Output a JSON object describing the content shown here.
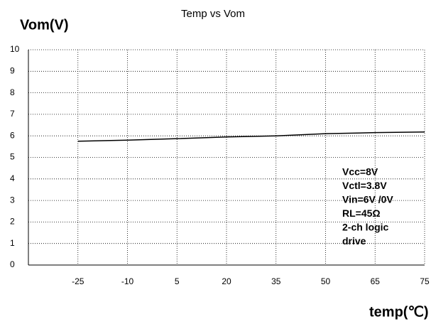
{
  "chart_data": {
    "type": "line",
    "title": "Temp vs Vom",
    "y_label": "Vom(V)",
    "x_label": "temp(℃)",
    "categories": [
      "-25",
      "-10",
      "5",
      "20",
      "35",
      "50",
      "65",
      "75"
    ],
    "series": [
      {
        "name": "Vom",
        "color": "#000000",
        "values": [
          5.75,
          5.8,
          5.87,
          5.95,
          6.0,
          6.1,
          6.15,
          6.18
        ]
      }
    ],
    "ylim": [
      0,
      10
    ],
    "yticks": [
      0,
      1,
      2,
      3,
      4,
      5,
      6,
      7,
      8,
      9,
      10
    ],
    "grid": true,
    "annotation": [
      "Vcc=8V",
      "Vctl=3.8V",
      "Vin=6V /0V",
      "RL=45Ω",
      "2-ch logic",
      "drive"
    ]
  }
}
